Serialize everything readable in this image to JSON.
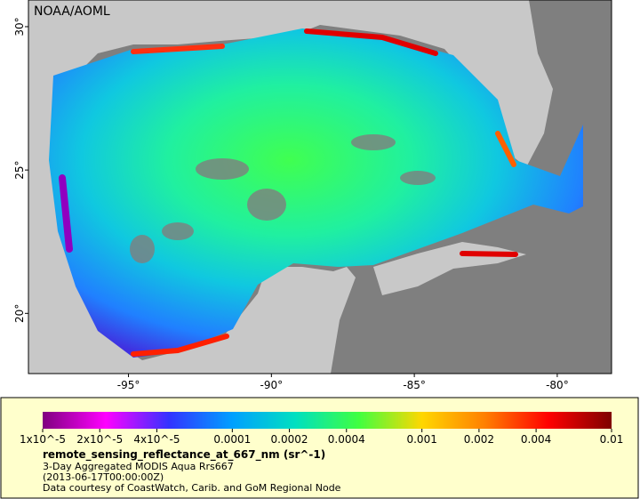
{
  "map": {
    "credit": "NOAA/AOML",
    "lon_range": [
      -98.5,
      -78.1
    ],
    "lat_range": [
      17.9,
      30.93
    ],
    "lat_ticks": [
      {
        "value": 30,
        "label": "30°"
      },
      {
        "value": 25,
        "label": "25°"
      },
      {
        "value": 20,
        "label": "20°"
      }
    ],
    "lon_ticks": [
      {
        "value": -95,
        "label": "-95°"
      },
      {
        "value": -90,
        "label": "-90°"
      },
      {
        "value": -85,
        "label": "-85°"
      },
      {
        "value": -80,
        "label": "-80°"
      }
    ]
  },
  "colorbar": {
    "scale": "log",
    "range": [
      1e-05,
      0.01
    ],
    "colors": [
      "#7f007f",
      "#ff00ff",
      "#3333ff",
      "#00a0ff",
      "#00e0c0",
      "#40ff40",
      "#ffd700",
      "#ff7f00",
      "#ff0000",
      "#7f0000"
    ],
    "ticks": [
      {
        "value": 1e-05,
        "label": "1x10^-5"
      },
      {
        "value": 2e-05,
        "label": "2x10^-5"
      },
      {
        "value": 4e-05,
        "label": "4x10^-5"
      },
      {
        "value": 0.0001,
        "label": "0.0001"
      },
      {
        "value": 0.0002,
        "label": "0.0002"
      },
      {
        "value": 0.0004,
        "label": "0.0004"
      },
      {
        "value": 0.001,
        "label": "0.001"
      },
      {
        "value": 0.002,
        "label": "0.002"
      },
      {
        "value": 0.004,
        "label": "0.004"
      },
      {
        "value": 0.01,
        "label": "0.01"
      }
    ],
    "title": "remote_sensing_reflectance_at_667_nm (sr^-1)",
    "subtitle": "3-Day Aggregated MODIS Aqua Rrs667",
    "time": "(2013-06-17T00:00:00Z)",
    "source": "Data courtesy of CoastWatch, Carib. and GoM Regional Node"
  }
}
